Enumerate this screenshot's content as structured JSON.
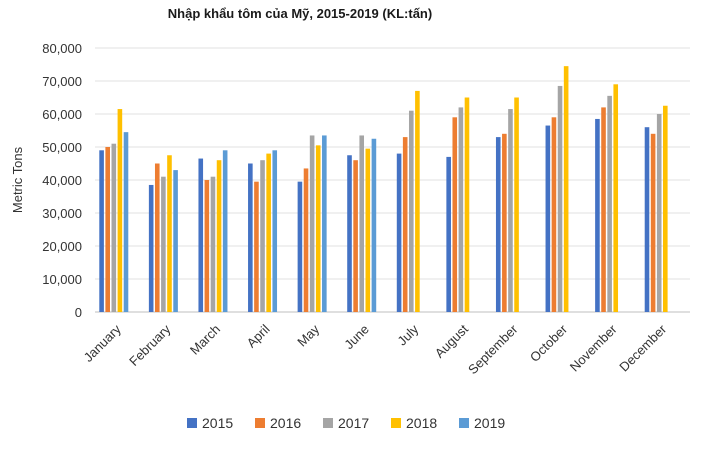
{
  "chart_data": {
    "type": "bar",
    "title": "Nhập khẩu tôm của Mỹ, 2015-2019 (KL:tấn)",
    "xlabel": "",
    "ylabel": "Metric Tons",
    "ylim": [
      0,
      80000
    ],
    "yticks": [
      "0",
      "10,000",
      "20,000",
      "30,000",
      "40,000",
      "50,000",
      "60,000",
      "70,000",
      "80,000"
    ],
    "grid": true,
    "legend_position": "bottom",
    "categories": [
      "January",
      "February",
      "March",
      "April",
      "May",
      "June",
      "July",
      "August",
      "September",
      "October",
      "November",
      "December"
    ],
    "series": [
      {
        "name": "2015",
        "color": "#4472C4",
        "values": [
          49000,
          38500,
          46500,
          45000,
          39500,
          47500,
          48000,
          47000,
          53000,
          56500,
          58500,
          56000
        ]
      },
      {
        "name": "2016",
        "color": "#ED7D31",
        "values": [
          50000,
          45000,
          40000,
          39500,
          43500,
          46000,
          53000,
          59000,
          54000,
          59000,
          62000,
          54000
        ]
      },
      {
        "name": "2017",
        "color": "#A5A5A5",
        "values": [
          51000,
          41000,
          41000,
          46000,
          53500,
          53500,
          61000,
          62000,
          61500,
          68500,
          65500,
          60000
        ]
      },
      {
        "name": "2018",
        "color": "#FFC000",
        "values": [
          61500,
          47500,
          46000,
          48000,
          50500,
          49500,
          67000,
          65000,
          65000,
          74500,
          69000,
          62500
        ]
      },
      {
        "name": "2019",
        "color": "#5B9BD5",
        "values": [
          54500,
          43000,
          49000,
          49000,
          53500,
          52500,
          null,
          null,
          null,
          null,
          null,
          null
        ]
      }
    ]
  }
}
